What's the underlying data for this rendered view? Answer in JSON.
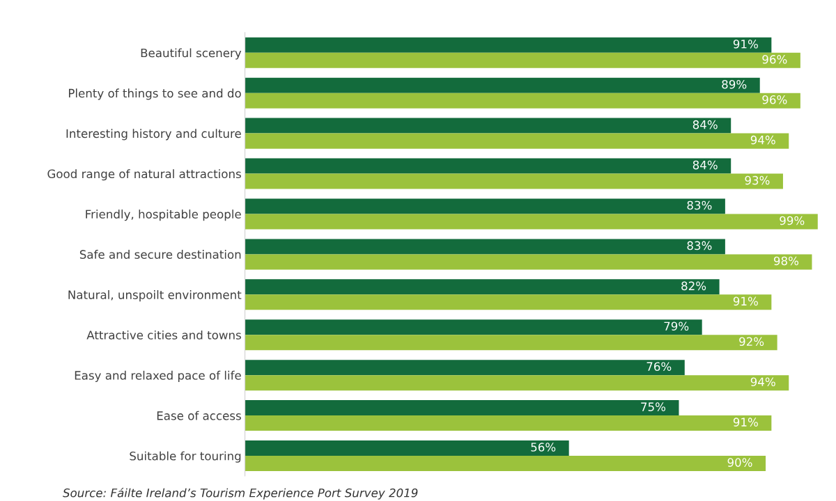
{
  "chart_data": {
    "type": "bar",
    "orientation": "horizontal",
    "categories": [
      "Beautiful scenery",
      "Plenty of things to see and do",
      "Interesting history and culture",
      "Good range of natural attractions",
      "Friendly, hospitable people",
      "Safe and secure destination",
      "Natural, unspoilt environment",
      "Attractive cities and towns",
      "Easy and relaxed pace of life",
      "Ease of access",
      "Suitable for touring"
    ],
    "series": [
      {
        "color": "#136b3c",
        "values": [
          91,
          89,
          84,
          84,
          83,
          83,
          82,
          79,
          76,
          75,
          56
        ],
        "value_labels": [
          "91%",
          "89%",
          "84%",
          "84%",
          "83%",
          "83%",
          "82%",
          "79%",
          "76%",
          "75%",
          "56%"
        ]
      },
      {
        "color": "#9bc23c",
        "values": [
          96,
          96,
          94,
          93,
          99,
          98,
          91,
          92,
          94,
          91,
          90
        ],
        "value_labels": [
          "96%",
          "96%",
          "94%",
          "93%",
          "99%",
          "98%",
          "91%",
          "92%",
          "94%",
          "91%",
          "90%"
        ]
      }
    ],
    "tick_labels": "y",
    "grid": false,
    "legend": false,
    "annotations": [
      "Source: Fáilte Ireland’s Tourism Experience Port Survey 2019"
    ]
  }
}
